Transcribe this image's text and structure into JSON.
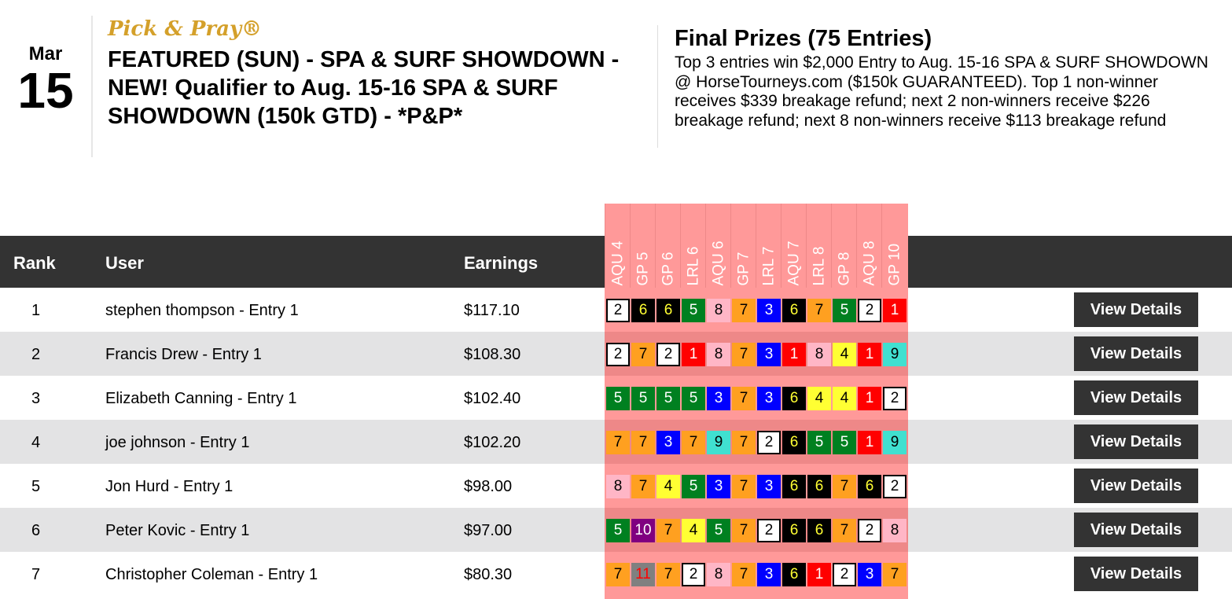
{
  "event": {
    "month": "Mar",
    "day": "15",
    "brand": "Pick & Pray®",
    "title": "FEATURED (SUN) - SPA & SURF SHOWDOWN - NEW! Qualifier to Aug. 15-16 SPA & SURF SHOWDOWN (150k GTD) - *P&P*"
  },
  "prizes": {
    "title": "Final Prizes (75 Entries)",
    "text": "Top 3 entries win $2,000 Entry to Aug. 15-16 SPA & SURF SHOWDOWN @ HorseTourneys.com ($150k GUARANTEED). Top 1 non-winner receives $339 breakage refund; next 2 non-winners receive $226 breakage refund; next 8 non-winners receive $113 breakage refund"
  },
  "table": {
    "headers": {
      "rank": "Rank",
      "user": "User",
      "earnings": "Earnings"
    },
    "races": [
      "AQU 4",
      "GP 5",
      "GP 6",
      "LRL 6",
      "AQU 6",
      "GP 7",
      "LRL 7",
      "AQU 7",
      "LRL 8",
      "GP 8",
      "AQU 8",
      "GP 10"
    ],
    "button_label": "View Details",
    "rows": [
      {
        "rank": "1",
        "user": "stephen thompson - Entry 1",
        "earnings": "$117.10",
        "picks": [
          2,
          6,
          6,
          5,
          8,
          7,
          3,
          6,
          7,
          5,
          2,
          1
        ]
      },
      {
        "rank": "2",
        "user": "Francis Drew - Entry 1",
        "earnings": "$108.30",
        "picks": [
          2,
          7,
          2,
          1,
          8,
          7,
          3,
          1,
          8,
          4,
          1,
          9
        ]
      },
      {
        "rank": "3",
        "user": "Elizabeth Canning - Entry 1",
        "earnings": "$102.40",
        "picks": [
          5,
          5,
          5,
          5,
          3,
          7,
          3,
          6,
          4,
          4,
          1,
          2
        ]
      },
      {
        "rank": "4",
        "user": "joe johnson - Entry 1",
        "earnings": "$102.20",
        "picks": [
          7,
          7,
          3,
          7,
          9,
          7,
          2,
          6,
          5,
          5,
          1,
          9
        ]
      },
      {
        "rank": "5",
        "user": "Jon Hurd - Entry 1",
        "earnings": "$98.00",
        "picks": [
          8,
          7,
          4,
          5,
          3,
          7,
          3,
          6,
          6,
          7,
          6,
          2
        ]
      },
      {
        "rank": "6",
        "user": "Peter Kovic - Entry 1",
        "earnings": "$97.00",
        "picks": [
          5,
          10,
          7,
          4,
          5,
          7,
          2,
          6,
          6,
          7,
          2,
          8
        ]
      },
      {
        "rank": "7",
        "user": "Christopher Coleman - Entry 1",
        "earnings": "$80.30",
        "picks": [
          7,
          11,
          7,
          2,
          8,
          7,
          3,
          6,
          1,
          2,
          3,
          7
        ]
      }
    ]
  },
  "saddle_colors": {
    "1": [
      "#ff0000",
      "#fff"
    ],
    "2": [
      "#ffffff",
      "#000"
    ],
    "3": [
      "#0000ff",
      "#fff"
    ],
    "4": [
      "#ffff33",
      "#000"
    ],
    "5": [
      "#008020",
      "#fff"
    ],
    "6": [
      "#000000",
      "#ffff33"
    ],
    "7": [
      "#ffa020",
      "#000"
    ],
    "8": [
      "#ffb6c6",
      "#000"
    ],
    "9": [
      "#40e0d0",
      "#000"
    ],
    "10": [
      "#800080",
      "#fff"
    ],
    "11": [
      "#808080",
      "#ff0000"
    ]
  }
}
